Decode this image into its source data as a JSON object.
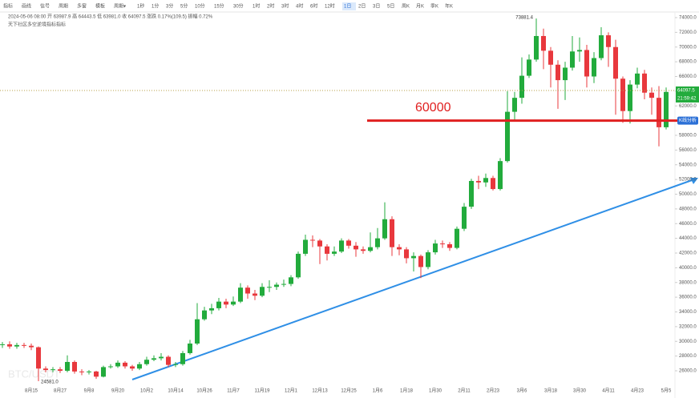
{
  "toolbar": [
    "指标",
    "画线",
    "信号",
    "周期",
    "多窗",
    "模板",
    "周期▾",
    "1秒",
    "1分",
    "3分",
    "5分",
    "10分",
    "15分",
    "30分",
    "1时",
    "2时",
    "3时",
    "4时",
    "6时",
    "12时",
    "1日",
    "2日",
    "3日",
    "5日",
    "周K",
    "月K",
    "季K",
    "年K"
  ],
  "toolbar_active": 20,
  "info": {
    "line1": "2024-05-06 08:00  开 63987.9  高 64443.5  低 63981.0  收 64097.5  涨跌 0.17%(109.5)  振幅 0.72%",
    "line2": "天下社区多空逆境指标指标"
  },
  "chart_data": {
    "type": "candlestick",
    "watermark": "BTC/USDT",
    "categories": [
      null,
      null,
      null,
      null,
      "8月15",
      null,
      null,
      null,
      "8月27",
      null,
      null,
      null,
      "9月8",
      null,
      null,
      null,
      "9月20",
      null,
      null,
      null,
      "10月2",
      null,
      null,
      null,
      "10月14",
      null,
      null,
      null,
      "10月26",
      null,
      null,
      null,
      "11月7",
      null,
      null,
      null,
      "11月19",
      null,
      null,
      null,
      "12月1",
      null,
      null,
      null,
      "12月13",
      null,
      null,
      null,
      "12月25",
      null,
      null,
      null,
      "1月6",
      null,
      null,
      null,
      "1月18",
      null,
      null,
      null,
      "1月30",
      null,
      null,
      null,
      "2月11",
      null,
      null,
      null,
      "2月23",
      null,
      null,
      null,
      "3月6",
      null,
      null,
      null,
      "3月18",
      null,
      null,
      null,
      "3月30",
      null,
      null,
      null,
      "4月11",
      null,
      null,
      null,
      "4月23",
      null,
      null,
      null,
      "5月5"
    ],
    "open": [
      29500,
      29600,
      29300,
      29500,
      29400,
      29200,
      26300,
      26100,
      26200,
      26000,
      27200,
      25900,
      25800,
      25900,
      25200,
      26500,
      26600,
      27100,
      26600,
      26300,
      26900,
      27500,
      27700,
      27900,
      26800,
      26900,
      28400,
      29700,
      33000,
      34200,
      34500,
      35400,
      35000,
      35400,
      37300,
      36500,
      36200,
      37400,
      37400,
      37700,
      37800,
      38700,
      41900,
      43800,
      43700,
      42900,
      41900,
      42200,
      43700,
      43000,
      42500,
      42300,
      42800,
      44000,
      46600,
      42800,
      42500,
      41300,
      41600,
      40100,
      42100,
      43300,
      43200,
      42700,
      45300,
      48300,
      51800,
      51600,
      52200,
      50700,
      54500,
      61200,
      63100,
      66100,
      68300,
      71500,
      69500,
      67600,
      65500,
      67200,
      69400,
      69600,
      66000,
      68500,
      71600,
      70000,
      65700,
      61300,
      64900,
      66400,
      63800,
      63100,
      59100
    ],
    "high": [
      29900,
      30000,
      29800,
      29800,
      29700,
      29300,
      26600,
      26500,
      26500,
      28100,
      27400,
      26200,
      26100,
      26000,
      26700,
      26900,
      27400,
      27300,
      26800,
      27200,
      27900,
      28100,
      28400,
      28100,
      27200,
      28700,
      30200,
      35200,
      34700,
      35100,
      35900,
      35800,
      36100,
      37900,
      37600,
      37000,
      37900,
      38300,
      38000,
      38400,
      39000,
      42200,
      44500,
      44400,
      43900,
      43200,
      42900,
      44000,
      43900,
      43500,
      42900,
      44800,
      45400,
      48900,
      47000,
      43200,
      42800,
      42100,
      41800,
      42400,
      43800,
      43700,
      43500,
      45600,
      48800,
      52100,
      52500,
      52800,
      52500,
      54900,
      64000,
      63900,
      68600,
      69000,
      73881.4,
      72500,
      70000,
      68200,
      68000,
      71500,
      71300,
      70300,
      69300,
      72700,
      72000,
      71000,
      66000,
      65500,
      67200,
      66900,
      64500,
      64700,
      64500
    ],
    "low": [
      29100,
      29000,
      29000,
      29100,
      28800,
      24581,
      25800,
      25800,
      25700,
      25800,
      25600,
      25400,
      25500,
      24900,
      25100,
      26300,
      26400,
      26300,
      26000,
      26100,
      26700,
      27300,
      27400,
      26500,
      26500,
      26700,
      28200,
      29500,
      32800,
      33700,
      34200,
      34500,
      34800,
      35200,
      35800,
      35600,
      36000,
      36700,
      37000,
      37400,
      37500,
      38500,
      41600,
      42800,
      40500,
      41000,
      41600,
      42000,
      42600,
      41500,
      41900,
      42100,
      42500,
      43800,
      41600,
      41700,
      40600,
      39500,
      38600,
      39800,
      41800,
      42700,
      42300,
      42500,
      45000,
      48000,
      50700,
      51000,
      50500,
      50500,
      54300,
      59900,
      62300,
      65800,
      68000,
      67000,
      64500,
      61600,
      62800,
      66800,
      68000,
      64500,
      65100,
      68200,
      67300,
      60800,
      59700,
      59600,
      64400,
      62900,
      60800,
      56500,
      58800
    ],
    "close": [
      29600,
      29300,
      29500,
      29400,
      29200,
      26300,
      26100,
      26200,
      26000,
      27200,
      25900,
      25800,
      25900,
      25200,
      26500,
      26600,
      27100,
      26600,
      26300,
      26900,
      27500,
      27700,
      27900,
      26800,
      26900,
      28400,
      29700,
      33000,
      34200,
      34500,
      35400,
      35000,
      35400,
      37300,
      36500,
      36200,
      37400,
      37400,
      37700,
      37800,
      38700,
      41900,
      43800,
      43700,
      42900,
      41900,
      42200,
      43700,
      43000,
      42500,
      42300,
      42800,
      44000,
      46600,
      42800,
      42500,
      41300,
      41600,
      40100,
      42100,
      43300,
      43200,
      42700,
      45300,
      48300,
      51800,
      51600,
      52200,
      50700,
      54500,
      61200,
      63100,
      66100,
      68300,
      71500,
      69500,
      67600,
      65500,
      67200,
      69400,
      69600,
      66000,
      68500,
      71600,
      70000,
      65700,
      61300,
      64900,
      66400,
      63800,
      63100,
      59100,
      63900
    ],
    "up_color": "#22ab3c",
    "down_color": "#e8383d",
    "max_label": "73881.4",
    "min_label": "24581.0",
    "ylim": [
      25000,
      75000
    ],
    "yticks": [
      {
        "value": 26000,
        "label": "26000.0"
      },
      {
        "value": 28000,
        "label": "28000.0"
      },
      {
        "value": 30000,
        "label": "30000.0"
      },
      {
        "value": 32000,
        "label": "32000.0"
      },
      {
        "value": 34000,
        "label": "34000.0"
      },
      {
        "value": 36000,
        "label": "36000.0"
      },
      {
        "value": 38000,
        "label": "38000.0"
      },
      {
        "value": 40000,
        "label": "40000.0"
      },
      {
        "value": 42000,
        "label": "42000.0"
      },
      {
        "value": 44000,
        "label": "44000.0"
      },
      {
        "value": 46000,
        "label": "46000.0"
      },
      {
        "value": 48000,
        "label": "48000.0"
      },
      {
        "value": 50000,
        "label": "50000.0"
      },
      {
        "value": 52000,
        "label": "52000.0"
      },
      {
        "value": 54000,
        "label": "54000.0"
      },
      {
        "value": 56000,
        "label": "56000.0"
      },
      {
        "value": 58000,
        "label": "58000.0"
      },
      {
        "value": 60000,
        "label": "60000.0"
      },
      {
        "value": 62000,
        "label": "62000.0"
      },
      {
        "value": 64000,
        "label": "64000.0"
      },
      {
        "value": 66000,
        "label": "66000.0"
      },
      {
        "value": 68000,
        "label": "68000.0"
      },
      {
        "value": 70000,
        "label": "70000.0"
      },
      {
        "value": 72000,
        "label": "72000.0"
      },
      {
        "value": 74000,
        "label": "74000.0"
      }
    ],
    "current_price": 64097.5,
    "countdown": "21:59:42",
    "analysis_button": "K线分析",
    "annotation": {
      "label": "60000",
      "value": 60000,
      "color": "#e02020"
    }
  }
}
